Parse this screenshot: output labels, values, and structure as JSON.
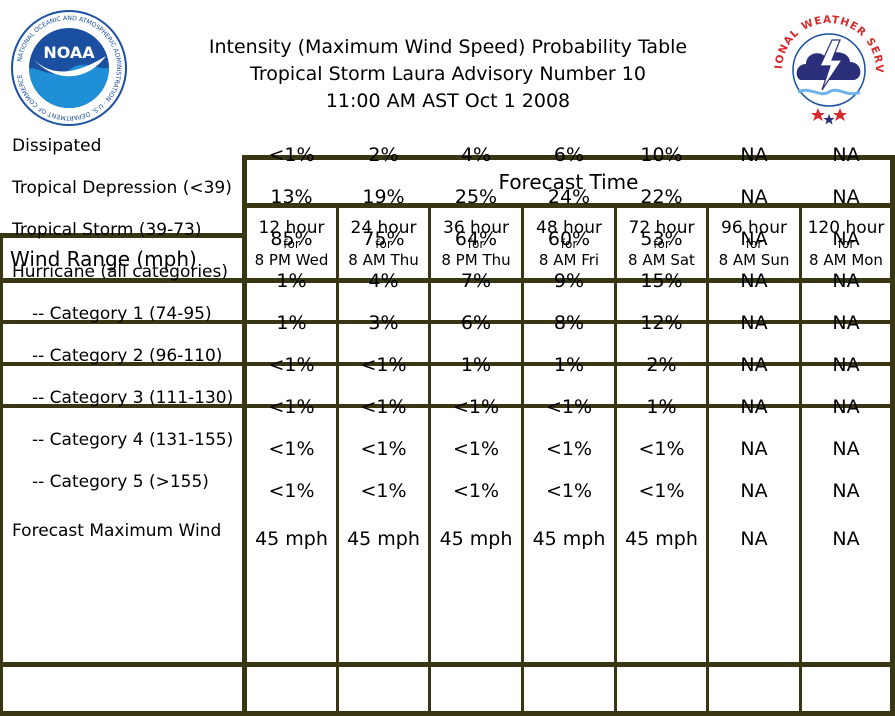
{
  "title": {
    "line1": "Intensity (Maximum Wind Speed) Probability Table",
    "line2": "Tropical Storm Laura Advisory Number 10",
    "line3": "11:00 AM AST Oct 1 2008"
  },
  "logos": {
    "left": "NOAA",
    "left_ring": "NATIONAL OCEANIC AND ATMOSPHERIC ADMINISTRATION · U.S. DEPARTMENT OF COMMERCE",
    "right_ring": "NATIONAL WEATHER SERVICE"
  },
  "colors": {
    "rule": "#393713",
    "noaa_blue": "#1b4fa0",
    "nws_red": "#d62b2b"
  },
  "table": {
    "forecast_time_label": "Forecast Time",
    "wind_range_label": "Wind Range (mph)",
    "for_label": "for",
    "columns": [
      {
        "hour": "12 hour",
        "time": "8 PM Wed"
      },
      {
        "hour": "24 hour",
        "time": "8 AM Thu"
      },
      {
        "hour": "36 hour",
        "time": "8 PM Thu"
      },
      {
        "hour": "48 hour",
        "time": "8 AM Fri"
      },
      {
        "hour": "72 hour",
        "time": "8 AM Sat"
      },
      {
        "hour": "96 hour",
        "time": "8 AM Sun"
      },
      {
        "hour": "120 hour",
        "time": "8 AM Mon"
      }
    ],
    "rows": [
      {
        "label": "Dissipated",
        "values": [
          "<1%",
          "2%",
          "4%",
          "6%",
          "10%",
          "NA",
          "NA"
        ]
      },
      {
        "label": "Tropical Depression (<39)",
        "values": [
          "13%",
          "19%",
          "25%",
          "24%",
          "22%",
          "NA",
          "NA"
        ]
      },
      {
        "label": "Tropical Storm (39-73)",
        "values": [
          "85%",
          "75%",
          "64%",
          "60%",
          "53%",
          "NA",
          "NA"
        ]
      },
      {
        "label": "Hurricane (all categories)",
        "values": [
          "1%",
          "4%",
          "7%",
          "9%",
          "15%",
          "NA",
          "NA"
        ]
      },
      {
        "label": "-- Category 1 (74-95)",
        "values": [
          "1%",
          "3%",
          "6%",
          "8%",
          "12%",
          "NA",
          "NA"
        ]
      },
      {
        "label": "-- Category 2 (96-110)",
        "values": [
          "<1%",
          "<1%",
          "1%",
          "1%",
          "2%",
          "NA",
          "NA"
        ]
      },
      {
        "label": "-- Category 3 (111-130)",
        "values": [
          "<1%",
          "<1%",
          "<1%",
          "<1%",
          "1%",
          "NA",
          "NA"
        ]
      },
      {
        "label": "-- Category 4 (131-155)",
        "values": [
          "<1%",
          "<1%",
          "<1%",
          "<1%",
          "<1%",
          "NA",
          "NA"
        ]
      },
      {
        "label": "-- Category 5 (>155)",
        "values": [
          "<1%",
          "<1%",
          "<1%",
          "<1%",
          "<1%",
          "NA",
          "NA"
        ]
      },
      {
        "label": "Forecast Maximum Wind",
        "values": [
          "45 mph",
          "45 mph",
          "45 mph",
          "45 mph",
          "45 mph",
          "NA",
          "NA"
        ]
      }
    ]
  }
}
